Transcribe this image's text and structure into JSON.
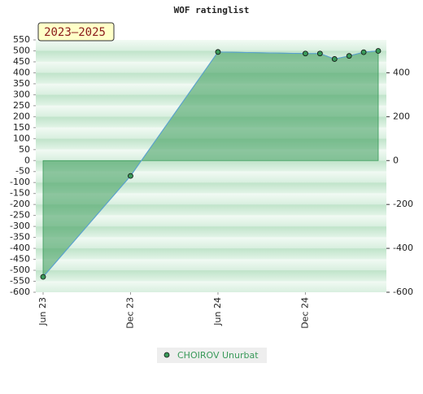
{
  "chart_data": {
    "type": "line",
    "title": "WOF ratinglist",
    "badge": "2023–2025",
    "x": [
      "2023-06",
      "2023-12",
      "2024-06",
      "2024-12",
      "2025-01",
      "2025-02",
      "2025-03",
      "2025-04",
      "2025-05"
    ],
    "series": [
      {
        "name": "CHOIROV Unurbat",
        "color": "#3a9a5a",
        "values": [
          -530,
          -70,
          495,
          488,
          488,
          463,
          477,
          494,
          500
        ]
      }
    ],
    "xlim": [
      "2023-06",
      "2025-05"
    ],
    "xticks": [
      {
        "value": "2023-06",
        "label": "Jun 23"
      },
      {
        "value": "2023-12",
        "label": "Dec 23"
      },
      {
        "value": "2024-06",
        "label": "Jun 24"
      },
      {
        "value": "2024-12",
        "label": "Dec 24"
      }
    ],
    "ylim": [
      -600,
      550
    ],
    "yticks": [
      550,
      500,
      450,
      400,
      350,
      300,
      250,
      200,
      150,
      100,
      50,
      0,
      -50,
      -100,
      -150,
      -200,
      -250,
      -300,
      -350,
      -400,
      -450,
      -500,
      -550,
      -600
    ],
    "y2lim": [
      -600,
      550
    ],
    "y2ticks": [
      400,
      200,
      0,
      -200,
      -400,
      -600
    ]
  }
}
